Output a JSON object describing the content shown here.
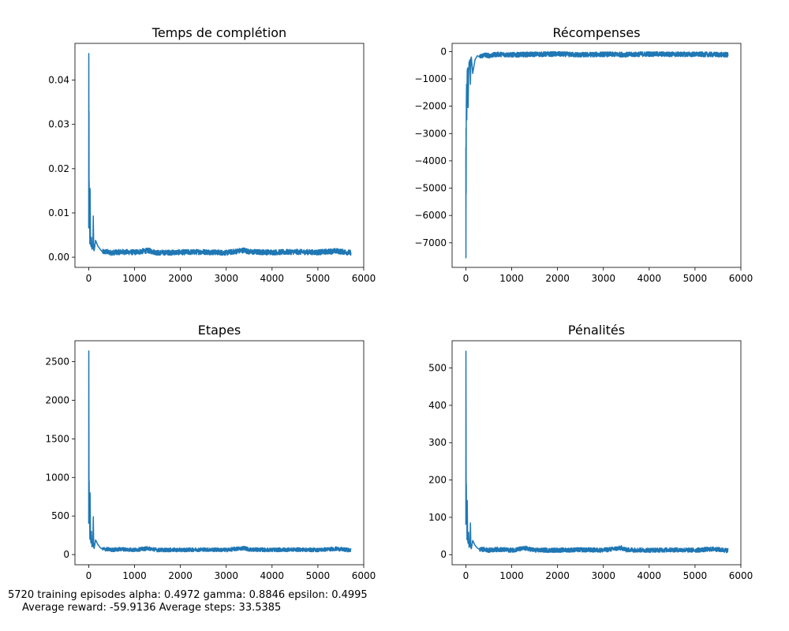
{
  "chart_data": [
    {
      "type": "line",
      "title": "Temps de complétion",
      "xlabel": "",
      "ylabel": "",
      "xlim": [
        -300,
        6000
      ],
      "ylim": [
        -0.0023,
        0.0483
      ],
      "xticks": [
        0,
        1000,
        2000,
        3000,
        4000,
        5000,
        6000
      ],
      "yticks": [
        0.0,
        0.01,
        0.02,
        0.03,
        0.04
      ],
      "ytick_labels": [
        "0.00",
        "0.01",
        "0.02",
        "0.03",
        "0.04"
      ],
      "color": "#1f77b4",
      "grid": false,
      "series": [
        {
          "x": [
            0,
            2,
            4,
            6,
            8,
            10,
            15,
            20,
            25,
            30,
            40,
            50,
            60,
            70,
            80,
            90,
            100,
            110,
            120,
            150,
            200,
            250,
            300,
            400,
            500,
            700,
            1000,
            1300,
            1500,
            2000,
            2500,
            3000,
            3400,
            3500,
            4000,
            4500,
            5000,
            5400,
            5720
          ],
          "y": [
            0.0065,
            0.046,
            0.03,
            0.033,
            0.009,
            0.017,
            0.008,
            0.012,
            0.003,
            0.0155,
            0.0035,
            0.0024,
            0.0045,
            0.0018,
            0.0021,
            0.002,
            0.0093,
            0.0016,
            0.0015,
            0.0038,
            0.0025,
            0.0018,
            0.0012,
            0.0012,
            0.001,
            0.0012,
            0.0011,
            0.0015,
            0.001,
            0.0011,
            0.0012,
            0.001,
            0.0016,
            0.0012,
            0.0011,
            0.0012,
            0.0011,
            0.0014,
            0.001
          ]
        }
      ],
      "noise": 0.0006,
      "floor": 0.0003
    },
    {
      "type": "line",
      "title": "Récompenses",
      "xlabel": "",
      "ylabel": "",
      "xlim": [
        -300,
        6000
      ],
      "ylim": [
        -7900,
        300
      ],
      "xticks": [
        0,
        1000,
        2000,
        3000,
        4000,
        5000,
        6000
      ],
      "yticks": [
        0,
        -1000,
        -2000,
        -3000,
        -4000,
        -5000,
        -6000,
        -7000
      ],
      "ytick_labels": [
        "0",
        "−1000",
        "−2000",
        "−3000",
        "−4000",
        "−5000",
        "−6000",
        "−7000"
      ],
      "color": "#1f77b4",
      "grid": false,
      "series": [
        {
          "x": [
            0,
            2,
            4,
            6,
            8,
            10,
            15,
            20,
            30,
            40,
            50,
            60,
            70,
            80,
            90,
            100,
            110,
            120,
            150,
            200,
            250,
            300,
            400,
            500,
            700,
            1000,
            1500,
            2000,
            2500,
            3000,
            3500,
            4000,
            4500,
            5000,
            5500,
            5720
          ],
          "y": [
            -3500,
            -7550,
            -2800,
            -5200,
            -3000,
            -2000,
            -1200,
            -2500,
            -700,
            -600,
            -2050,
            -900,
            -400,
            -350,
            -300,
            -1200,
            -250,
            -200,
            -800,
            -300,
            -150,
            -200,
            -120,
            -150,
            -100,
            -120,
            -100,
            -90,
            -120,
            -100,
            -110,
            -90,
            -100,
            -100,
            -110,
            -120
          ]
        }
      ],
      "noise": 90,
      "floor": null
    },
    {
      "type": "line",
      "title": "Etapes",
      "xlabel": "",
      "ylabel": "",
      "xlim": [
        -300,
        6000
      ],
      "ylim": [
        -132,
        2772
      ],
      "xticks": [
        0,
        1000,
        2000,
        3000,
        4000,
        5000,
        6000
      ],
      "yticks": [
        0,
        500,
        1000,
        1500,
        2000,
        2500
      ],
      "ytick_labels": [
        "0",
        "500",
        "1000",
        "1500",
        "2000",
        "2500"
      ],
      "color": "#1f77b4",
      "grid": false,
      "series": [
        {
          "x": [
            0,
            2,
            4,
            6,
            8,
            10,
            15,
            20,
            25,
            30,
            40,
            50,
            60,
            70,
            80,
            90,
            100,
            110,
            120,
            150,
            200,
            250,
            300,
            400,
            500,
            700,
            1000,
            1300,
            1500,
            2000,
            2500,
            3000,
            3400,
            3500,
            4000,
            4500,
            5000,
            5400,
            5720
          ],
          "y": [
            400,
            2640,
            1800,
            1000,
            500,
            950,
            450,
            650,
            200,
            800,
            200,
            150,
            300,
            100,
            120,
            110,
            490,
            90,
            80,
            190,
            130,
            90,
            70,
            70,
            60,
            70,
            60,
            80,
            60,
            60,
            65,
            60,
            85,
            65,
            60,
            65,
            60,
            75,
            55
          ]
        }
      ],
      "noise": 25,
      "floor": 8
    },
    {
      "type": "line",
      "title": "Pénalités",
      "xlabel": "",
      "ylabel": "",
      "xlim": [
        -300,
        6000
      ],
      "ylim": [
        -27,
        573
      ],
      "xticks": [
        0,
        1000,
        2000,
        3000,
        4000,
        5000,
        6000
      ],
      "yticks": [
        0,
        100,
        200,
        300,
        400,
        500
      ],
      "ytick_labels": [
        "0",
        "100",
        "200",
        "300",
        "400",
        "500"
      ],
      "color": "#1f77b4",
      "grid": false,
      "series": [
        {
          "x": [
            0,
            2,
            4,
            6,
            8,
            10,
            15,
            20,
            25,
            30,
            40,
            50,
            60,
            70,
            80,
            90,
            100,
            110,
            120,
            150,
            200,
            250,
            300,
            400,
            500,
            700,
            1000,
            1300,
            1500,
            2000,
            2500,
            3000,
            3400,
            3500,
            4000,
            4500,
            5000,
            5400,
            5720
          ],
          "y": [
            80,
            545,
            380,
            200,
            100,
            190,
            90,
            140,
            40,
            145,
            40,
            30,
            60,
            20,
            25,
            22,
            85,
            18,
            16,
            38,
            25,
            18,
            14,
            14,
            12,
            14,
            12,
            17,
            12,
            12,
            13,
            12,
            18,
            13,
            12,
            13,
            12,
            15,
            11
          ]
        }
      ],
      "noise": 6,
      "floor": 0
    }
  ],
  "caption": {
    "line1": "5720 training episodes alpha: 0.4972 gamma: 0.8846 epsilon: 0.4995",
    "line2": "Average reward: -59.9136 Average steps: 33.5385"
  }
}
